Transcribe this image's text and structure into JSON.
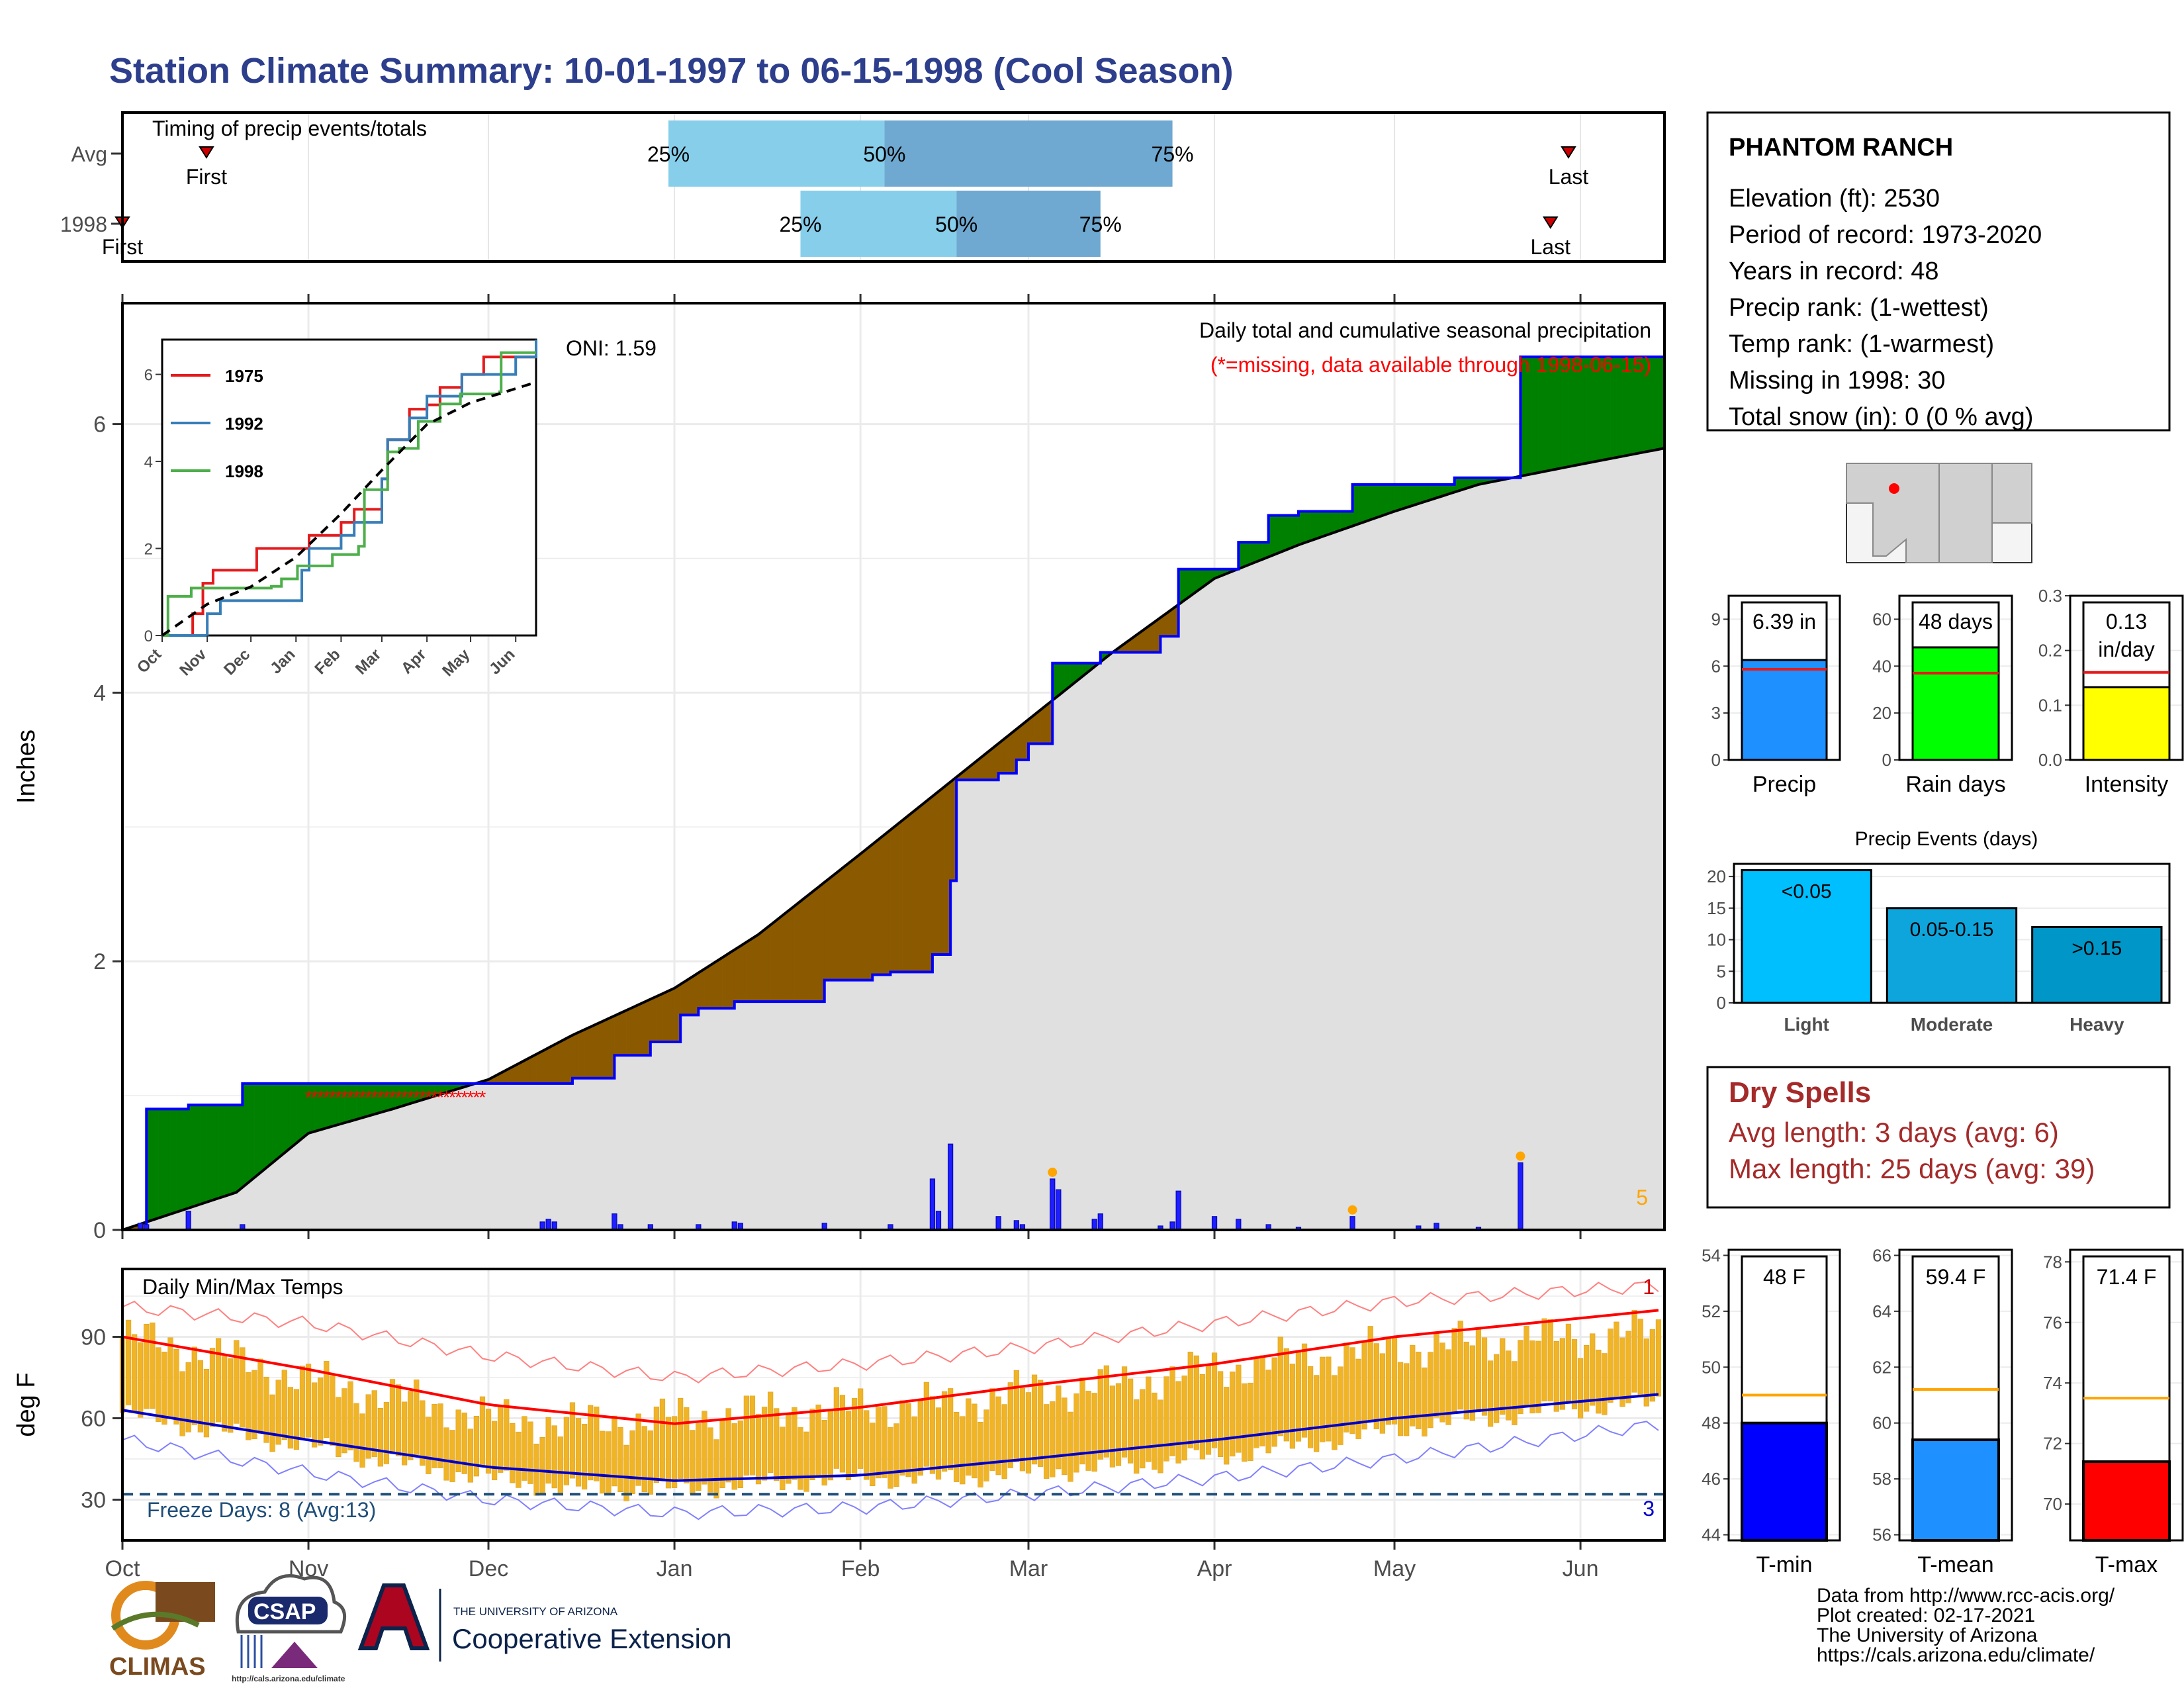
{
  "title": "Station Climate Summary: 10-01-1997 to 06-15-1998 (Cool Season)",
  "months": [
    "Oct",
    "Nov",
    "Dec",
    "Jan",
    "Feb",
    "Mar",
    "Apr",
    "May",
    "Jun"
  ],
  "timing": {
    "label": "Timing of precip events/totals",
    "rows": [
      {
        "name": "Avg",
        "first_label": "First",
        "last_label": "Last",
        "q25": "25%",
        "q50": "50%",
        "q75": "75%",
        "first_date": "1997-10-15",
        "last_date": "1998-05-30",
        "q25_date": "1997-12-31",
        "q50_date": "1998-02-05",
        "q75_date": "1998-03-25"
      },
      {
        "name": "1998",
        "first_label": "First",
        "last_label": "Last",
        "q25": "25%",
        "q50": "50%",
        "q75": "75%",
        "first_date": "1997-10-01",
        "last_date": "1998-05-27",
        "q25_date": "1998-01-22",
        "q50_date": "1998-02-17",
        "q75_date": "1998-03-13"
      }
    ]
  },
  "precip": {
    "ylabel": "Inches",
    "annotation_1": "Daily total and cumulative seasonal precipitation",
    "annotation_2": "(*=missing, data available through 1998-06-15)",
    "oni": "ONI: 1.59",
    "corner_count": "5",
    "y_ticks": [
      "0",
      "2",
      "4",
      "6"
    ],
    "colors": {
      "above": "#008000",
      "below": "#8B5A00",
      "avg_fill": "#e0e0e0",
      "bars": "#1e1eff"
    }
  },
  "inset": {
    "x_ticks": [
      "Oct",
      "Nov",
      "Dec",
      "Jan",
      "Feb",
      "Mar",
      "Apr",
      "May",
      "Jun"
    ],
    "y_ticks": [
      "0",
      "2",
      "4",
      "6"
    ],
    "series": [
      {
        "name": "1975",
        "color": "#e41a1c"
      },
      {
        "name": "1992",
        "color": "#377eb8"
      },
      {
        "name": "1998",
        "color": "#4daf4a"
      }
    ]
  },
  "temps": {
    "ylabel": "deg F",
    "label": "Daily Min/Max Temps",
    "freeze": "Freeze Days: 8 (Avg:13)",
    "y_ticks": [
      "30",
      "60",
      "90"
    ],
    "count_top": "1",
    "count_bottom": "3"
  },
  "station": {
    "name": "PHANTOM RANCH",
    "lines": [
      "Elevation (ft): 2530",
      "Period of record: 1973-2020",
      "Years in record: 48",
      "Precip rank:  (1-wettest)",
      "Temp rank:  (1-warmest)",
      "Missing in 1998: 30",
      "Total snow (in): 0 (0 % avg)"
    ]
  },
  "precip_stats": [
    {
      "label": "Precip",
      "value_text": "6.39 in",
      "value": 6.39,
      "avg": 5.8,
      "ymax": 10.5,
      "ticks": [
        "0",
        "3",
        "6",
        "9"
      ],
      "tick_vals": [
        0,
        3,
        6,
        9
      ],
      "color": "#1e90ff"
    },
    {
      "label": "Rain days",
      "value_text": "48 days",
      "value": 48,
      "avg": 37,
      "ymax": 70,
      "ticks": [
        "0",
        "20",
        "40",
        "60"
      ],
      "tick_vals": [
        0,
        20,
        40,
        60
      ],
      "color": "#00ff00"
    },
    {
      "label": "Intensity",
      "value_text": "0.13 in/day",
      "value": 0.133,
      "avg": 0.16,
      "ymax": 0.3,
      "ticks": [
        "0.0",
        "0.1",
        "0.2",
        "0.3"
      ],
      "tick_vals": [
        0,
        0.1,
        0.2,
        0.3
      ],
      "color": "#ffff00"
    }
  ],
  "events": {
    "title": "Precip Events (days)",
    "ticks": [
      "0",
      "5",
      "10",
      "15",
      "20"
    ],
    "bars": [
      {
        "category": "Light",
        "label": "<0.05",
        "value": 21,
        "color": "#00bfff"
      },
      {
        "category": "Moderate",
        "label": "0.05-0.15",
        "value": 15,
        "color": "#0ea5dc"
      },
      {
        "category": "Heavy",
        "label": ">0.15",
        "value": 12,
        "color": "#0096c7"
      }
    ]
  },
  "dry_spells": {
    "title": "Dry Spells",
    "lines": [
      "Avg length: 3 days (avg: 6)",
      "Max length: 25 days (avg: 39)"
    ]
  },
  "temp_stats": [
    {
      "label": "T-min",
      "value_text": "48 F",
      "value": 48,
      "avg": 49,
      "ymin": 43.8,
      "ymax": 54.2,
      "ticks": [
        "44",
        "46",
        "48",
        "50",
        "52",
        "54"
      ],
      "tick_vals": [
        44,
        46,
        48,
        50,
        52,
        54
      ],
      "color": "#0000ff"
    },
    {
      "label": "T-mean",
      "value_text": "59.4 F",
      "value": 59.4,
      "avg": 61.2,
      "ymin": 55.8,
      "ymax": 66.2,
      "ticks": [
        "56",
        "58",
        "60",
        "62",
        "64",
        "66"
      ],
      "tick_vals": [
        56,
        58,
        60,
        62,
        64,
        66
      ],
      "color": "#1e90ff"
    },
    {
      "label": "T-max",
      "value_text": "71.4 F",
      "value": 71.4,
      "avg": 73.5,
      "ymin": 68.8,
      "ymax": 78.4,
      "ticks": [
        "70",
        "72",
        "74",
        "76",
        "78"
      ],
      "tick_vals": [
        70,
        72,
        74,
        76,
        78
      ],
      "color": "#ff0000"
    }
  ],
  "footer": [
    "Data from http://www.rcc-acis.org/",
    "Plot created: 02-17-2021",
    "The University of Arizona",
    "https://cals.arizona.edu/climate/"
  ],
  "logos": {
    "climas": "CLIMAS",
    "csap": "CSAP",
    "csap_url": "http://cals.arizona.edu/climate",
    "ua_small": "THE UNIVERSITY OF ARIZONA",
    "ua_big": "Cooperative Extension"
  },
  "chart_data": [
    {
      "type": "area",
      "title": "Daily total and cumulative seasonal precipitation",
      "ylabel": "Inches",
      "xlim": [
        "1997-10-01",
        "1998-06-15"
      ],
      "ylim": [
        0,
        6.9
      ],
      "series": [
        {
          "name": "cumulative 1998",
          "x": [
            "1997-10-01",
            "1997-10-05",
            "1997-10-12",
            "1997-10-21",
            "1997-12-10",
            "1997-12-15",
            "1997-12-22",
            "1997-12-28",
            "1998-01-02",
            "1998-01-05",
            "1998-01-11",
            "1998-01-26",
            "1998-02-03",
            "1998-02-06",
            "1998-02-13",
            "1998-02-16",
            "1998-02-17",
            "1998-02-24",
            "1998-02-27",
            "1998-03-01",
            "1998-03-05",
            "1998-03-13",
            "1998-03-23",
            "1998-03-26",
            "1998-04-05",
            "1998-04-10",
            "1998-04-15",
            "1998-04-24",
            "1998-05-01",
            "1998-05-11",
            "1998-05-21",
            "1998-05-22",
            "1998-06-15"
          ],
          "values": [
            0,
            0.9,
            0.93,
            1.09,
            1.09,
            1.13,
            1.3,
            1.4,
            1.6,
            1.65,
            1.7,
            1.86,
            1.9,
            1.92,
            2.05,
            2.6,
            3.35,
            3.4,
            3.5,
            3.62,
            4.22,
            4.3,
            4.42,
            4.92,
            5.12,
            5.32,
            5.35,
            5.55,
            5.55,
            5.6,
            5.6,
            6.5,
            6.5
          ]
        },
        {
          "name": "average cumulative",
          "x": [
            "1997-10-01",
            "1997-10-20",
            "1997-11-01",
            "1997-11-15",
            "1997-12-01",
            "1997-12-15",
            "1998-01-01",
            "1998-01-15",
            "1998-02-01",
            "1998-02-15",
            "1998-03-01",
            "1998-03-15",
            "1998-04-01",
            "1998-04-15",
            "1998-05-01",
            "1998-05-15",
            "1998-06-01",
            "1998-06-15"
          ],
          "values": [
            0,
            0.28,
            0.72,
            0.9,
            1.12,
            1.45,
            1.8,
            2.2,
            2.8,
            3.3,
            3.8,
            4.3,
            4.85,
            5.1,
            5.35,
            5.55,
            5.7,
            5.82
          ]
        }
      ],
      "daily_precip": {
        "x": [
          "1997-10-04",
          "1997-10-05",
          "1997-10-12",
          "1997-10-21",
          "1997-12-10",
          "1997-12-11",
          "1997-12-12",
          "1997-12-22",
          "1997-12-23",
          "1997-12-28",
          "1998-01-05",
          "1998-01-11",
          "1998-01-12",
          "1998-01-26",
          "1998-02-06",
          "1998-02-13",
          "1998-02-14",
          "1998-02-16",
          "1998-02-24",
          "1998-02-27",
          "1998-02-28",
          "1998-03-05",
          "1998-03-06",
          "1998-03-12",
          "1998-03-13",
          "1998-03-23",
          "1998-03-25",
          "1998-03-26",
          "1998-04-01",
          "1998-04-05",
          "1998-04-10",
          "1998-04-15",
          "1998-04-24",
          "1998-05-05",
          "1998-05-08",
          "1998-05-15",
          "1998-05-22"
        ],
        "values": [
          0.05,
          0.04,
          0.14,
          0.04,
          0.06,
          0.08,
          0.06,
          0.12,
          0.04,
          0.04,
          0.04,
          0.06,
          0.05,
          0.05,
          0.04,
          0.38,
          0.14,
          0.64,
          0.1,
          0.07,
          0.04,
          0.38,
          0.3,
          0.08,
          0.12,
          0.03,
          0.06,
          0.29,
          0.1,
          0.08,
          0.04,
          0.02,
          0.1,
          0.03,
          0.05,
          0.02,
          0.5
        ]
      },
      "missing": {
        "x_start": "1997-11-01",
        "x_end": "1997-11-30",
        "y": 1.0
      }
    },
    {
      "type": "line",
      "title": "",
      "xlabel": "",
      "ylabel": "",
      "xlim": [
        "1997-10-01",
        "1998-06-15"
      ],
      "ylim": [
        0,
        6.8
      ],
      "series": [
        {
          "name": "1975",
          "x": [
            "1997-10-01",
            "1997-10-12",
            "1997-10-22",
            "1997-10-29",
            "1997-11-05",
            "1997-11-25",
            "1997-12-05",
            "1998-01-01",
            "1998-01-10",
            "1998-01-20",
            "1998-02-01",
            "1998-02-10",
            "1998-03-01",
            "1998-03-05",
            "1998-03-20",
            "1998-04-01",
            "1998-04-10",
            "1998-04-25",
            "1998-05-10",
            "1998-06-15"
          ],
          "values": [
            0,
            0,
            0.5,
            1.2,
            1.5,
            1.5,
            2.0,
            2.0,
            2.3,
            2.3,
            2.6,
            2.9,
            3.6,
            4.5,
            5.2,
            5.3,
            5.7,
            6.0,
            6.4,
            6.4
          ]
        },
        {
          "name": "1992",
          "x": [
            "1997-10-01",
            "1997-10-20",
            "1997-11-01",
            "1997-11-10",
            "1997-12-01",
            "1998-01-05",
            "1998-01-10",
            "1998-02-01",
            "1998-02-10",
            "1998-03-01",
            "1998-03-05",
            "1998-03-20",
            "1998-04-01",
            "1998-04-10",
            "1998-04-25",
            "1998-05-10",
            "1998-06-01",
            "1998-06-15"
          ],
          "values": [
            0,
            0,
            0.5,
            0.8,
            0.8,
            1.5,
            2.0,
            2.3,
            2.6,
            3.6,
            4.5,
            5.0,
            5.5,
            5.5,
            6.0,
            6.0,
            6.4,
            6.8
          ]
        },
        {
          "name": "1998",
          "x": [
            "1997-10-01",
            "1997-10-05",
            "1997-10-21",
            "1997-12-15",
            "1997-12-22",
            "1998-01-02",
            "1998-01-26",
            "1998-02-13",
            "1998-02-17",
            "1998-03-05",
            "1998-03-13",
            "1998-03-26",
            "1998-04-10",
            "1998-04-24",
            "1998-05-21",
            "1998-05-22",
            "1998-06-15"
          ],
          "values": [
            0,
            0.9,
            1.09,
            1.13,
            1.3,
            1.6,
            1.86,
            2.05,
            3.35,
            4.22,
            4.3,
            4.92,
            5.32,
            5.55,
            5.6,
            6.5,
            6.5
          ]
        },
        {
          "name": "average",
          "x": [
            "1997-10-01",
            "1997-11-01",
            "1997-12-01",
            "1998-01-01",
            "1998-02-01",
            "1998-03-01",
            "1998-04-01",
            "1998-05-01",
            "1998-06-15"
          ],
          "values": [
            0,
            0.72,
            1.12,
            1.8,
            2.8,
            3.8,
            4.85,
            5.35,
            5.82
          ]
        }
      ]
    },
    {
      "type": "line",
      "title": "Daily Min/Max Temps",
      "ylabel": "deg F",
      "xlim": [
        "1997-10-01",
        "1998-06-15"
      ],
      "ylim": [
        15,
        115
      ],
      "freeze_line": 32,
      "series": [
        {
          "name": "record high",
          "x": [
            "1997-10-01",
            "1997-11-01",
            "1997-12-01",
            "1998-01-01",
            "1998-02-01",
            "1998-03-01",
            "1998-04-01",
            "1998-05-01",
            "1998-06-15"
          ],
          "values": [
            101,
            95,
            83,
            75,
            80,
            86,
            95,
            103,
            109
          ]
        },
        {
          "name": "average high",
          "x": [
            "1997-10-01",
            "1997-11-01",
            "1997-12-01",
            "1998-01-01",
            "1998-02-01",
            "1998-03-01",
            "1998-04-01",
            "1998-05-01",
            "1998-06-15"
          ],
          "values": [
            90,
            78,
            65,
            58,
            64,
            72,
            80,
            90,
            100
          ]
        },
        {
          "name": "average low",
          "x": [
            "1997-10-01",
            "1997-11-01",
            "1997-12-01",
            "1998-01-01",
            "1998-02-01",
            "1998-03-01",
            "1998-04-01",
            "1998-05-01",
            "1998-06-15"
          ],
          "values": [
            63,
            52,
            42,
            37,
            39,
            45,
            52,
            60,
            69
          ]
        },
        {
          "name": "record low",
          "x": [
            "1997-10-01",
            "1997-11-01",
            "1997-12-01",
            "1998-01-01",
            "1998-02-01",
            "1998-03-01",
            "1998-04-01",
            "1998-05-01",
            "1998-06-15"
          ],
          "values": [
            52,
            40,
            30,
            25,
            27,
            32,
            38,
            45,
            58
          ]
        }
      ],
      "daily_range": {
        "x": [
          "1997-10-01",
          "1997-10-15",
          "1997-11-01",
          "1997-11-15",
          "1997-12-01",
          "1997-12-15",
          "1998-01-01",
          "1998-01-15",
          "1998-02-01",
          "1998-02-15",
          "1998-03-01",
          "1998-03-15",
          "1998-04-01",
          "1998-04-15",
          "1998-05-01",
          "1998-05-15",
          "1998-06-01",
          "1998-06-15"
        ],
        "tmax": [
          90,
          84,
          74,
          68,
          60,
          58,
          60,
          62,
          64,
          65,
          70,
          72,
          78,
          82,
          86,
          88,
          90,
          92
        ],
        "tmin": [
          62,
          56,
          50,
          44,
          38,
          34,
          34,
          36,
          38,
          38,
          40,
          42,
          46,
          50,
          56,
          60,
          64,
          66
        ]
      }
    }
  ]
}
